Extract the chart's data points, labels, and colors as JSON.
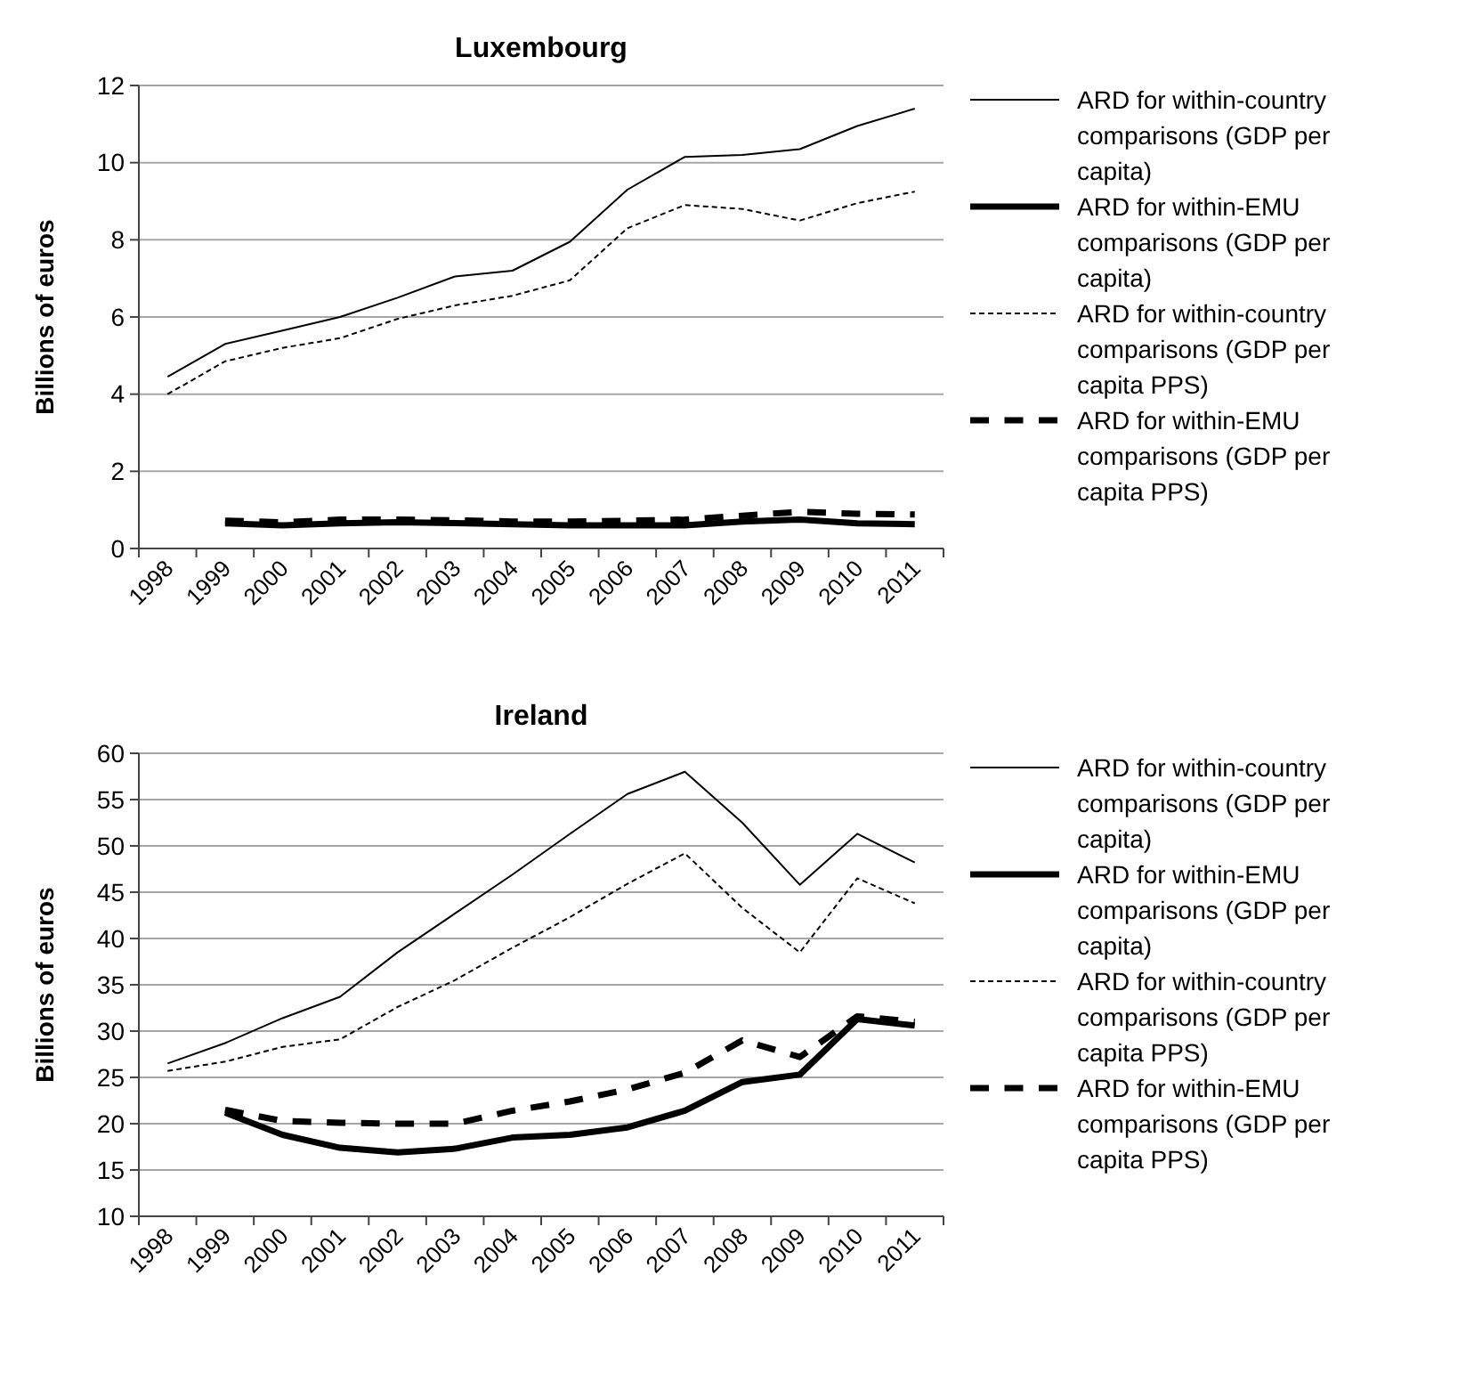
{
  "chart_data": [
    {
      "type": "line",
      "title": "Luxembourg",
      "ylabel": "Billions of euros",
      "categories": [
        "1998",
        "1999",
        "2000",
        "2001",
        "2002",
        "2003",
        "2004",
        "2005",
        "2006",
        "2007",
        "2008",
        "2009",
        "2010",
        "2011"
      ],
      "ylim": [
        0,
        12
      ],
      "yticks": [
        0,
        2,
        4,
        6,
        8,
        10,
        12
      ],
      "grid": "y",
      "legend": "right",
      "series": [
        {
          "name": "ARD for within-country comparisons (GDP per capita)",
          "color": "#000000",
          "line_style": "solid",
          "values": [
            4.45,
            5.3,
            5.65,
            6.0,
            6.5,
            7.05,
            7.2,
            7.95,
            9.3,
            10.15,
            10.2,
            10.35,
            10.95,
            11.4
          ]
        },
        {
          "name": "ARD for within-EMU comparisons (GDP per capita)",
          "color": "#000000",
          "line_style": "solid",
          "values": [
            null,
            0.65,
            0.6,
            0.65,
            0.68,
            0.66,
            0.63,
            0.6,
            0.6,
            0.6,
            0.7,
            0.75,
            0.65,
            0.63
          ]
        },
        {
          "name": "ARD for within-country comparisons (GDP per capita PPS)",
          "color": "#000000",
          "line_style": "dotted",
          "values": [
            4.0,
            4.85,
            5.2,
            5.45,
            5.95,
            6.3,
            6.55,
            6.95,
            8.3,
            8.9,
            8.8,
            8.5,
            8.95,
            9.25
          ]
        },
        {
          "name": "ARD for within-EMU comparisons (GDP per capita PPS)",
          "color": "#000000",
          "line_style": "dashed",
          "values": [
            null,
            0.72,
            0.68,
            0.75,
            0.75,
            0.73,
            0.7,
            0.7,
            0.72,
            0.75,
            0.85,
            0.95,
            0.9,
            0.88
          ]
        }
      ]
    },
    {
      "type": "line",
      "title": "Ireland",
      "ylabel": "Billions of euros",
      "categories": [
        "1998",
        "1999",
        "2000",
        "2001",
        "2002",
        "2003",
        "2004",
        "2005",
        "2006",
        "2007",
        "2008",
        "2009",
        "2010",
        "2011"
      ],
      "ylim": [
        10,
        60
      ],
      "yticks": [
        10,
        15,
        20,
        25,
        30,
        35,
        40,
        45,
        50,
        55,
        60
      ],
      "grid": "y",
      "legend": "right",
      "series": [
        {
          "name": "ARD for within-country comparisons (GDP per capita)",
          "color": "#000000",
          "line_style": "solid",
          "values": [
            26.5,
            28.7,
            31.4,
            33.7,
            38.5,
            42.7,
            46.9,
            51.3,
            55.6,
            58.0,
            52.5,
            45.8,
            51.3,
            48.2
          ]
        },
        {
          "name": "ARD for within-EMU comparisons (GDP per capita)",
          "color": "#000000",
          "line_style": "solid",
          "values": [
            null,
            21.2,
            18.8,
            17.4,
            16.9,
            17.3,
            18.5,
            18.8,
            19.6,
            21.4,
            24.5,
            25.3,
            31.3,
            30.6
          ]
        },
        {
          "name": "ARD for within-country comparisons (GDP per capita PPS)",
          "color": "#000000",
          "line_style": "dotted",
          "values": [
            25.7,
            26.7,
            28.3,
            29.1,
            32.6,
            35.5,
            39.0,
            42.3,
            45.9,
            49.2,
            43.3,
            38.5,
            46.5,
            43.8
          ]
        },
        {
          "name": "ARD for within-EMU comparisons (GDP per capita PPS)",
          "color": "#000000",
          "line_style": "dashed",
          "values": [
            null,
            21.5,
            20.3,
            20.1,
            20.0,
            20.0,
            21.4,
            22.4,
            23.7,
            25.5,
            29.0,
            27.2,
            31.6,
            31.0
          ]
        }
      ]
    }
  ]
}
